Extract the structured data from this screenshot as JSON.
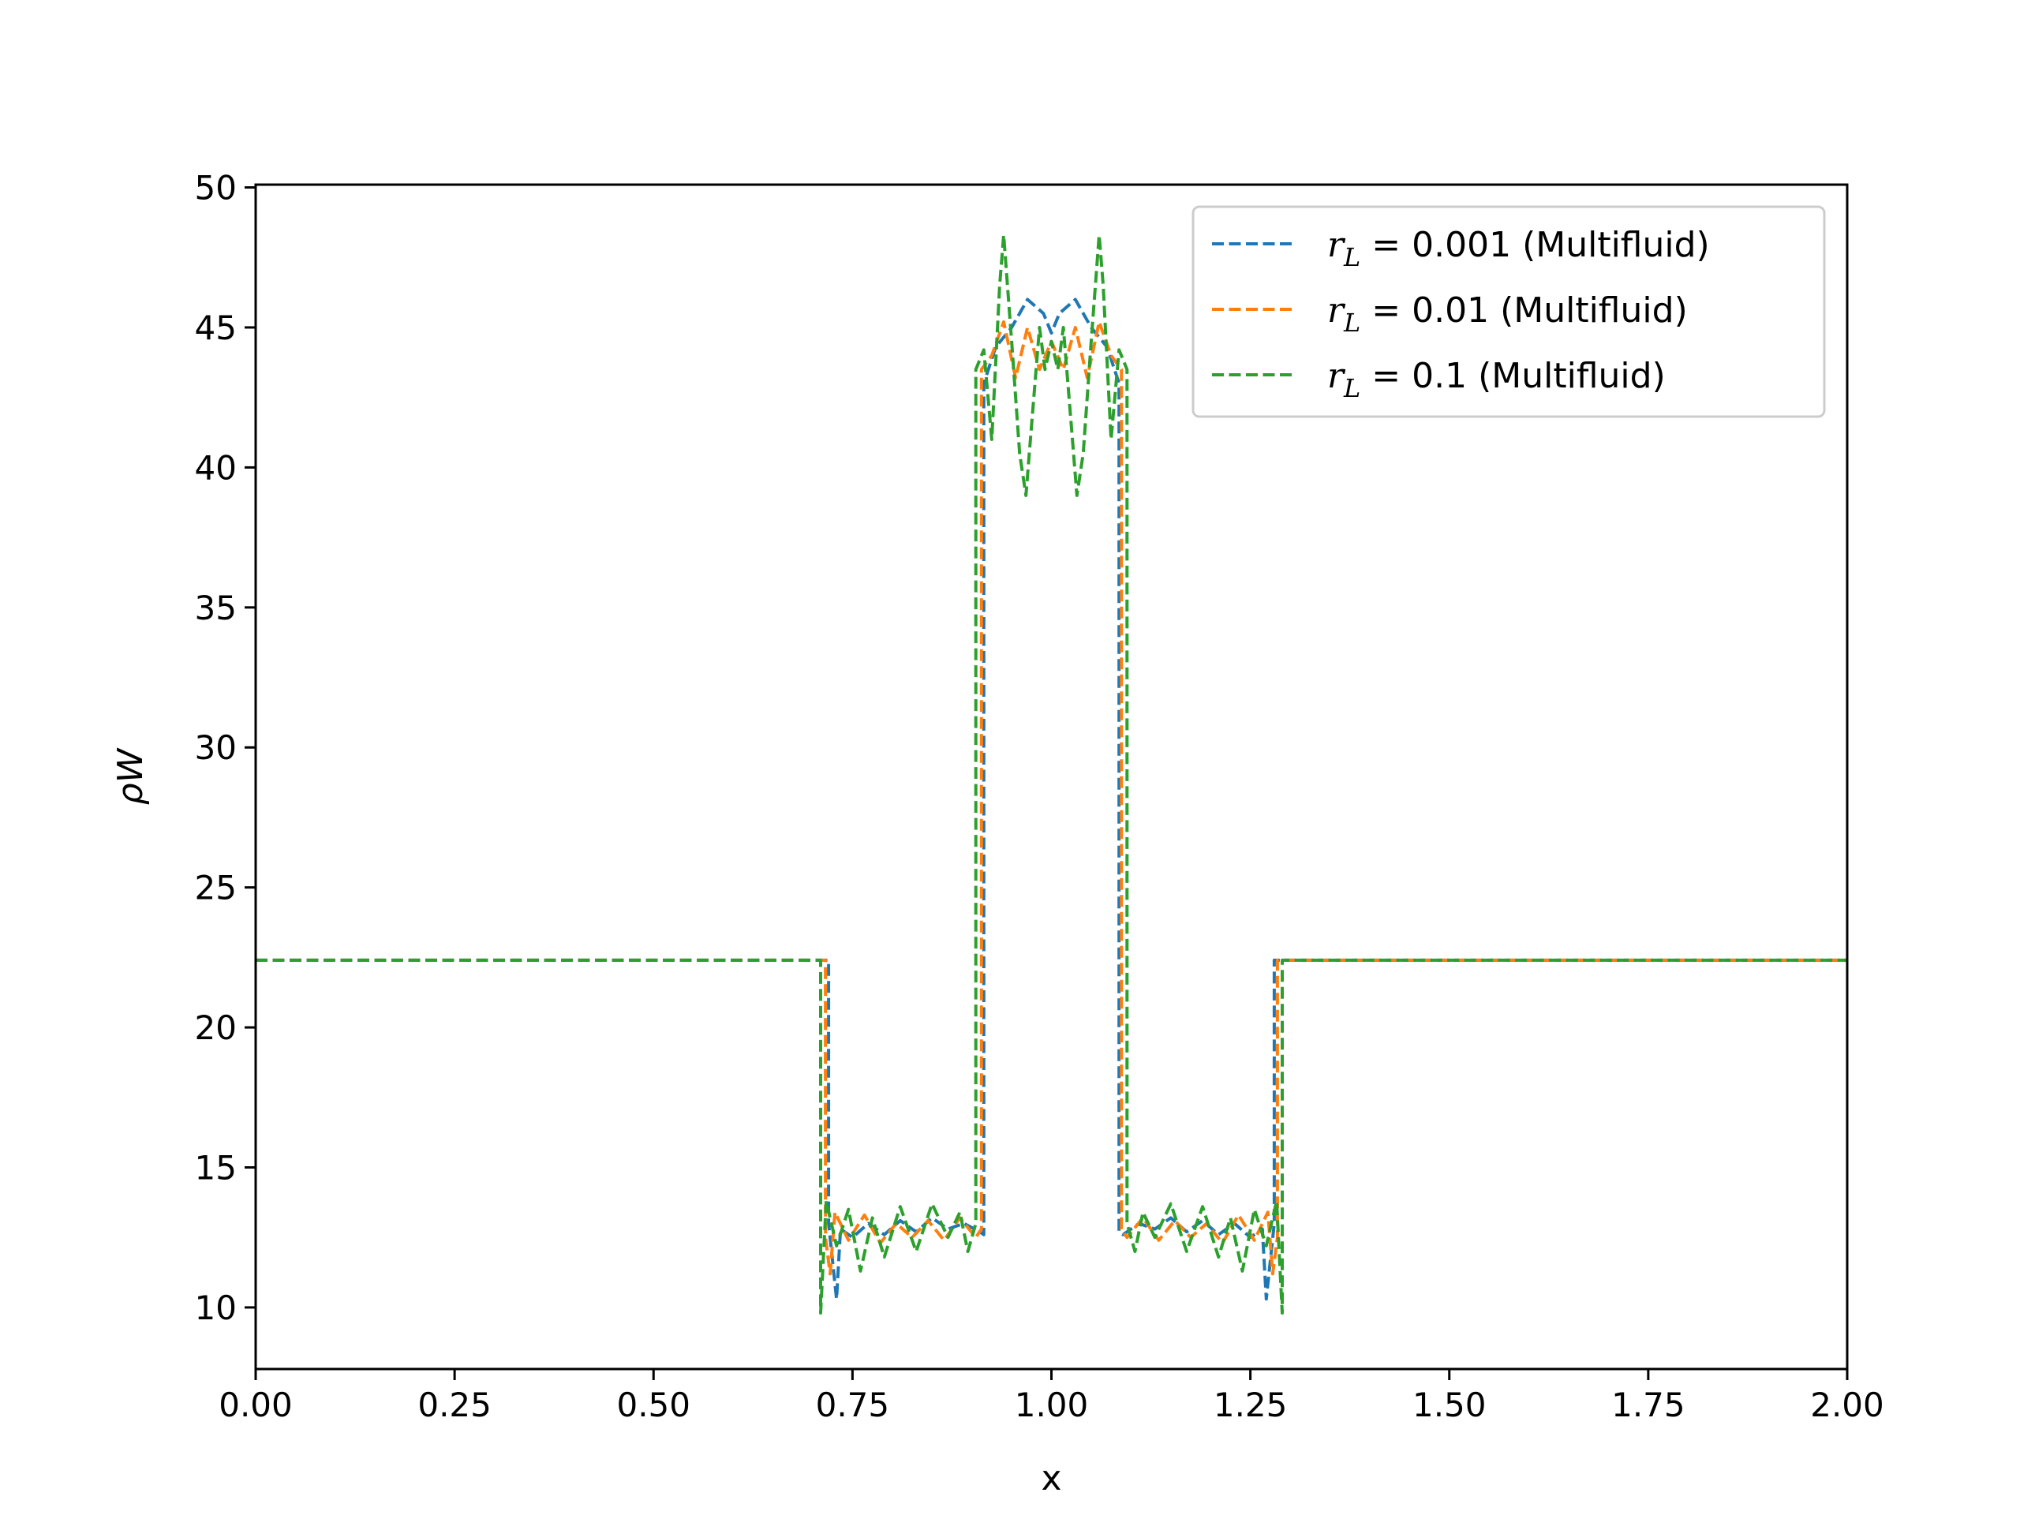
{
  "chart_data": {
    "type": "line",
    "title": "",
    "xlabel": "x",
    "ylabel": "ρW",
    "xlim": [
      0.0,
      2.0
    ],
    "ylim": [
      7.8,
      50.1
    ],
    "xticks": [
      "0.00",
      "0.25",
      "0.50",
      "0.75",
      "1.00",
      "1.25",
      "1.50",
      "1.75",
      "2.00"
    ],
    "yticks": [
      "10",
      "15",
      "20",
      "25",
      "30",
      "35",
      "40",
      "45",
      "50"
    ],
    "grid": false,
    "legend_position": "top-right",
    "line_style": "dashed",
    "series": [
      {
        "name": "r_L = 0.001 (Multifluid)",
        "legend_var": "r",
        "legend_sub": "L",
        "legend_rest": " = 0.001 (Multifluid)",
        "color": "#1f77b4",
        "points": [
          [
            0.0,
            22.4
          ],
          [
            0.72,
            22.4
          ],
          [
            0.72,
            13.0
          ],
          [
            0.73,
            10.3
          ],
          [
            0.735,
            12.8
          ],
          [
            0.75,
            12.5
          ],
          [
            0.77,
            13.0
          ],
          [
            0.79,
            12.6
          ],
          [
            0.81,
            13.1
          ],
          [
            0.83,
            12.7
          ],
          [
            0.85,
            13.2
          ],
          [
            0.87,
            12.8
          ],
          [
            0.89,
            13.0
          ],
          [
            0.91,
            12.7
          ],
          [
            0.915,
            12.6
          ],
          [
            0.915,
            43.0
          ],
          [
            0.93,
            44.3
          ],
          [
            0.95,
            45.0
          ],
          [
            0.97,
            46.0
          ],
          [
            0.99,
            45.5
          ],
          [
            1.0,
            44.8
          ],
          [
            1.01,
            45.5
          ],
          [
            1.03,
            46.0
          ],
          [
            1.05,
            45.0
          ],
          [
            1.07,
            44.3
          ],
          [
            1.085,
            43.0
          ],
          [
            1.085,
            12.7
          ],
          [
            1.09,
            12.6
          ],
          [
            1.11,
            13.0
          ],
          [
            1.13,
            12.8
          ],
          [
            1.15,
            13.2
          ],
          [
            1.17,
            12.7
          ],
          [
            1.19,
            13.1
          ],
          [
            1.21,
            12.6
          ],
          [
            1.23,
            13.0
          ],
          [
            1.25,
            12.5
          ],
          [
            1.265,
            12.8
          ],
          [
            1.27,
            10.3
          ],
          [
            1.28,
            13.0
          ],
          [
            1.28,
            22.4
          ],
          [
            2.0,
            22.4
          ]
        ]
      },
      {
        "name": "r_L = 0.01 (Multifluid)",
        "legend_var": "r",
        "legend_sub": "L",
        "legend_rest": " = 0.01 (Multifluid)",
        "color": "#ff7f0e",
        "points": [
          [
            0.0,
            22.4
          ],
          [
            0.716,
            22.4
          ],
          [
            0.716,
            12.5
          ],
          [
            0.722,
            11.2
          ],
          [
            0.728,
            13.4
          ],
          [
            0.745,
            12.4
          ],
          [
            0.765,
            13.3
          ],
          [
            0.785,
            12.3
          ],
          [
            0.805,
            13.0
          ],
          [
            0.825,
            12.5
          ],
          [
            0.845,
            13.1
          ],
          [
            0.865,
            12.4
          ],
          [
            0.885,
            13.2
          ],
          [
            0.905,
            12.5
          ],
          [
            0.912,
            12.8
          ],
          [
            0.912,
            43.5
          ],
          [
            0.925,
            44.0
          ],
          [
            0.94,
            45.2
          ],
          [
            0.955,
            43.2
          ],
          [
            0.97,
            45.0
          ],
          [
            0.985,
            43.5
          ],
          [
            1.0,
            44.5
          ],
          [
            1.015,
            43.5
          ],
          [
            1.03,
            45.0
          ],
          [
            1.045,
            43.2
          ],
          [
            1.06,
            45.2
          ],
          [
            1.075,
            44.0
          ],
          [
            1.088,
            43.5
          ],
          [
            1.088,
            12.8
          ],
          [
            1.095,
            12.5
          ],
          [
            1.115,
            13.2
          ],
          [
            1.135,
            12.4
          ],
          [
            1.155,
            13.1
          ],
          [
            1.175,
            12.5
          ],
          [
            1.195,
            13.0
          ],
          [
            1.215,
            12.3
          ],
          [
            1.235,
            13.3
          ],
          [
            1.255,
            12.4
          ],
          [
            1.272,
            13.4
          ],
          [
            1.278,
            11.2
          ],
          [
            1.284,
            12.5
          ],
          [
            1.284,
            22.4
          ],
          [
            2.0,
            22.4
          ]
        ]
      },
      {
        "name": "r_L = 0.1 (Multifluid)",
        "legend_var": "r",
        "legend_sub": "L",
        "legend_rest": " = 0.1 (Multifluid)",
        "color": "#2ca02c",
        "points": [
          [
            0.0,
            22.4
          ],
          [
            0.71,
            22.4
          ],
          [
            0.71,
            9.8
          ],
          [
            0.717,
            13.8
          ],
          [
            0.73,
            12.2
          ],
          [
            0.745,
            13.5
          ],
          [
            0.76,
            11.3
          ],
          [
            0.775,
            13.2
          ],
          [
            0.79,
            11.8
          ],
          [
            0.81,
            13.6
          ],
          [
            0.83,
            12.0
          ],
          [
            0.85,
            13.7
          ],
          [
            0.87,
            12.5
          ],
          [
            0.885,
            13.4
          ],
          [
            0.895,
            12.0
          ],
          [
            0.905,
            13.0
          ],
          [
            0.905,
            43.5
          ],
          [
            0.915,
            44.2
          ],
          [
            0.925,
            41.0
          ],
          [
            0.935,
            46.5
          ],
          [
            0.94,
            48.3
          ],
          [
            0.95,
            44.5
          ],
          [
            0.96,
            40.5
          ],
          [
            0.968,
            39.0
          ],
          [
            0.975,
            41.5
          ],
          [
            0.985,
            45.0
          ],
          [
            0.992,
            43.5
          ],
          [
            1.0,
            44.5
          ],
          [
            1.008,
            43.5
          ],
          [
            1.015,
            45.0
          ],
          [
            1.025,
            41.5
          ],
          [
            1.032,
            39.0
          ],
          [
            1.04,
            40.5
          ],
          [
            1.05,
            44.5
          ],
          [
            1.06,
            48.3
          ],
          [
            1.065,
            46.5
          ],
          [
            1.075,
            41.0
          ],
          [
            1.085,
            44.2
          ],
          [
            1.095,
            43.5
          ],
          [
            1.095,
            13.0
          ],
          [
            1.105,
            12.0
          ],
          [
            1.115,
            13.4
          ],
          [
            1.13,
            12.5
          ],
          [
            1.15,
            13.7
          ],
          [
            1.17,
            12.0
          ],
          [
            1.19,
            13.6
          ],
          [
            1.21,
            11.8
          ],
          [
            1.225,
            13.2
          ],
          [
            1.24,
            11.3
          ],
          [
            1.255,
            13.5
          ],
          [
            1.27,
            12.2
          ],
          [
            1.283,
            13.8
          ],
          [
            1.29,
            9.8
          ],
          [
            1.29,
            22.4
          ],
          [
            2.0,
            22.4
          ]
        ]
      }
    ]
  }
}
